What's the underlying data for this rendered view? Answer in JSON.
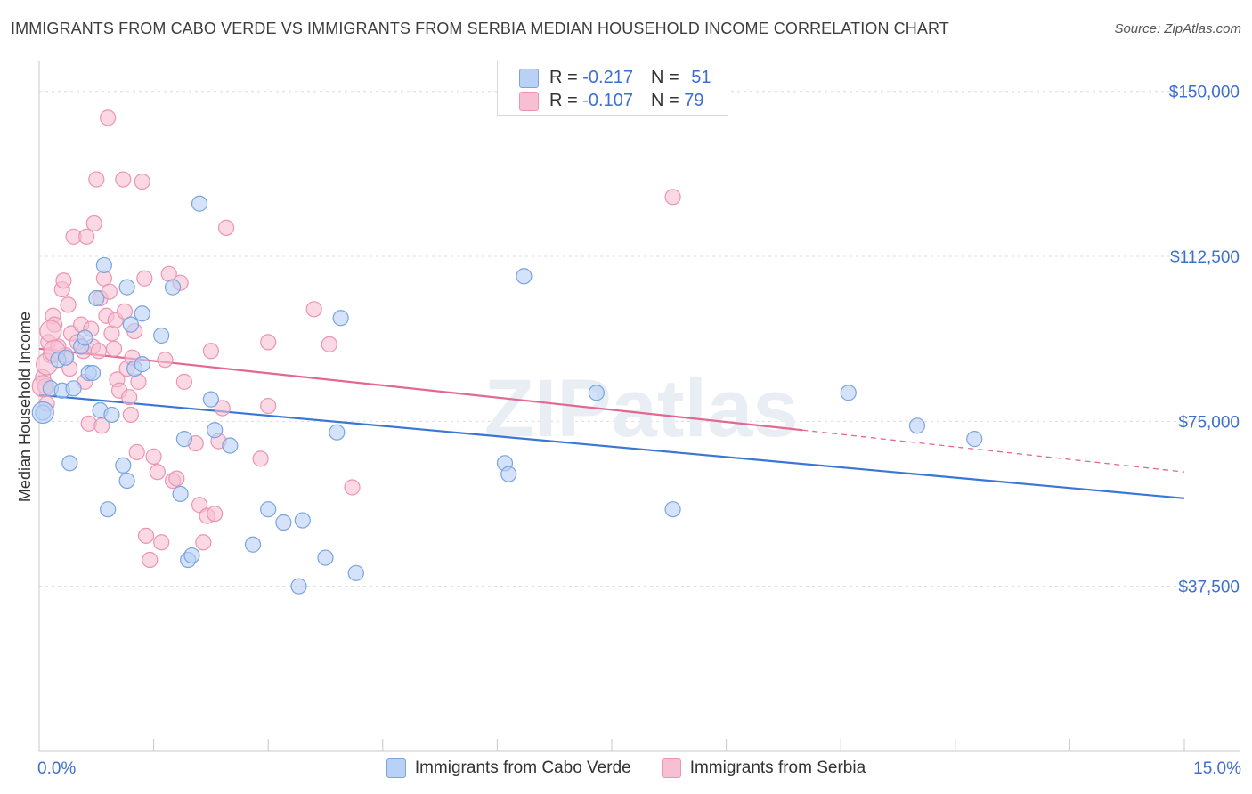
{
  "title": "IMMIGRANTS FROM CABO VERDE VS IMMIGRANTS FROM SERBIA MEDIAN HOUSEHOLD INCOME CORRELATION CHART",
  "source": "Source: ZipAtlas.com",
  "watermark": "ZIPatlas",
  "colors": {
    "blue_fill": "#b8d1f5",
    "blue_stroke": "#7aa4df",
    "blue_line": "#3a76d6",
    "pink_fill": "#f7c0d2",
    "pink_stroke": "#ec94b2",
    "pink_line": "#e4678f",
    "axis_label": "#3d6fd0"
  },
  "legend": {
    "rows": [
      {
        "r_label": "R =",
        "r_value": "-0.217",
        "n_label": "N =",
        "n_value": "51"
      },
      {
        "r_label": "R =",
        "r_value": "-0.107",
        "n_label": "N =",
        "n_value": "79"
      }
    ]
  },
  "bottom_legend": {
    "series1": "Immigrants from Cabo Verde",
    "series2": "Immigrants from Serbia"
  },
  "chart_data": {
    "type": "scatter",
    "title": "IMMIGRANTS FROM CABO VERDE VS IMMIGRANTS FROM SERBIA MEDIAN HOUSEHOLD INCOME CORRELATION CHART",
    "xlabel": "",
    "ylabel": "Median Household Income",
    "xlim": [
      0,
      15
    ],
    "ylim": [
      0,
      155000
    ],
    "x_tick_labels": [
      "0.0%",
      "15.0%"
    ],
    "y_ticks": [
      37500,
      75000,
      112500,
      150000
    ],
    "y_tick_labels": [
      "$37,500",
      "$75,000",
      "$112,500",
      "$150,000"
    ],
    "series": [
      {
        "name": "Immigrants from Cabo Verde",
        "points": [
          [
            0.05,
            77000
          ],
          [
            0.15,
            82500
          ],
          [
            0.25,
            89000
          ],
          [
            0.3,
            82000
          ],
          [
            0.35,
            89500
          ],
          [
            0.4,
            65500
          ],
          [
            0.45,
            82500
          ],
          [
            0.55,
            92000
          ],
          [
            0.6,
            94000
          ],
          [
            0.65,
            86000
          ],
          [
            0.7,
            86000
          ],
          [
            0.75,
            103000
          ],
          [
            0.8,
            77500
          ],
          [
            0.85,
            110500
          ],
          [
            0.9,
            55000
          ],
          [
            0.95,
            76500
          ],
          [
            1.1,
            65000
          ],
          [
            1.15,
            61500
          ],
          [
            1.15,
            105500
          ],
          [
            1.2,
            97000
          ],
          [
            1.25,
            87000
          ],
          [
            1.35,
            88000
          ],
          [
            1.35,
            99500
          ],
          [
            1.6,
            94500
          ],
          [
            1.75,
            105500
          ],
          [
            1.85,
            58500
          ],
          [
            1.9,
            71000
          ],
          [
            1.95,
            43500
          ],
          [
            2.0,
            44500
          ],
          [
            2.1,
            124500
          ],
          [
            2.25,
            80000
          ],
          [
            2.3,
            73000
          ],
          [
            2.5,
            69500
          ],
          [
            2.8,
            47000
          ],
          [
            3.0,
            55000
          ],
          [
            3.2,
            52000
          ],
          [
            3.4,
            37500
          ],
          [
            3.45,
            52500
          ],
          [
            3.75,
            44000
          ],
          [
            3.9,
            72500
          ],
          [
            3.95,
            98500
          ],
          [
            4.15,
            40500
          ],
          [
            6.1,
            65500
          ],
          [
            6.15,
            63000
          ],
          [
            6.35,
            108000
          ],
          [
            7.3,
            81500
          ],
          [
            8.3,
            55000
          ],
          [
            10.6,
            81500
          ],
          [
            11.5,
            74000
          ],
          [
            12.25,
            71000
          ],
          [
            0.05,
            77000
          ]
        ]
      },
      {
        "name": "Immigrants from Serbia",
        "points": [
          [
            0.05,
            85000
          ],
          [
            0.08,
            83000
          ],
          [
            0.1,
            79000
          ],
          [
            0.12,
            93000
          ],
          [
            0.15,
            90000
          ],
          [
            0.18,
            99000
          ],
          [
            0.2,
            97000
          ],
          [
            0.25,
            92000
          ],
          [
            0.3,
            105000
          ],
          [
            0.32,
            107000
          ],
          [
            0.35,
            90000
          ],
          [
            0.38,
            101500
          ],
          [
            0.4,
            87000
          ],
          [
            0.42,
            95000
          ],
          [
            0.45,
            117000
          ],
          [
            0.5,
            93000
          ],
          [
            0.55,
            97000
          ],
          [
            0.58,
            91000
          ],
          [
            0.6,
            84000
          ],
          [
            0.62,
            117000
          ],
          [
            0.65,
            74500
          ],
          [
            0.68,
            96000
          ],
          [
            0.7,
            92000
          ],
          [
            0.72,
            120000
          ],
          [
            0.75,
            130000
          ],
          [
            0.78,
            91000
          ],
          [
            0.8,
            103000
          ],
          [
            0.82,
            74000
          ],
          [
            0.85,
            107500
          ],
          [
            0.88,
            99000
          ],
          [
            0.9,
            144000
          ],
          [
            0.92,
            104500
          ],
          [
            0.95,
            95000
          ],
          [
            0.98,
            91500
          ],
          [
            1.0,
            98000
          ],
          [
            1.02,
            84500
          ],
          [
            1.05,
            82000
          ],
          [
            1.1,
            130000
          ],
          [
            1.12,
            100000
          ],
          [
            1.15,
            87000
          ],
          [
            1.18,
            80500
          ],
          [
            1.2,
            76500
          ],
          [
            1.22,
            89500
          ],
          [
            1.25,
            95500
          ],
          [
            1.28,
            68000
          ],
          [
            1.3,
            84000
          ],
          [
            1.35,
            129500
          ],
          [
            1.38,
            107500
          ],
          [
            1.4,
            49000
          ],
          [
            1.45,
            43500
          ],
          [
            1.5,
            67000
          ],
          [
            1.55,
            63500
          ],
          [
            1.6,
            47500
          ],
          [
            1.65,
            89000
          ],
          [
            1.7,
            108500
          ],
          [
            1.75,
            61500
          ],
          [
            1.8,
            62000
          ],
          [
            1.85,
            106500
          ],
          [
            1.9,
            84000
          ],
          [
            2.05,
            70000
          ],
          [
            2.1,
            56000
          ],
          [
            2.15,
            47500
          ],
          [
            2.2,
            53500
          ],
          [
            2.25,
            91000
          ],
          [
            2.3,
            54000
          ],
          [
            2.35,
            70500
          ],
          [
            2.4,
            78000
          ],
          [
            2.45,
            119000
          ],
          [
            2.9,
            66500
          ],
          [
            3.0,
            78500
          ],
          [
            3.0,
            93000
          ],
          [
            3.6,
            100500
          ],
          [
            3.8,
            92500
          ],
          [
            4.1,
            60000
          ],
          [
            8.3,
            126000
          ],
          [
            0.05,
            83000
          ],
          [
            0.1,
            88000
          ],
          [
            0.15,
            95500
          ],
          [
            0.2,
            91000
          ]
        ]
      }
    ],
    "trend_lines": [
      {
        "series": "Immigrants from Cabo Verde",
        "x0": 0,
        "y0": 81000,
        "x1": 15,
        "y1": 57500
      },
      {
        "series": "Immigrants from Serbia",
        "x0": 0,
        "y0": 91500,
        "x1": 10.0,
        "y1": 73000,
        "dashed_to_x": 15,
        "dashed_to_y": 63500
      }
    ]
  }
}
